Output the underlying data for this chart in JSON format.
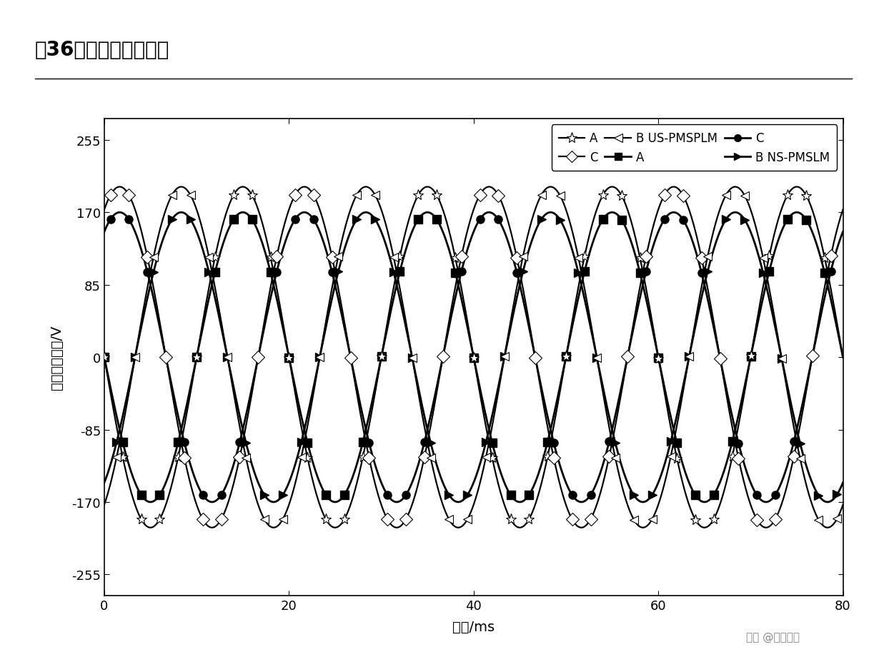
{
  "title": "图36：反电动势的波形",
  "xlabel": "时间/ms",
  "ylabel": "空载反电动势/V",
  "xlim": [
    0,
    80
  ],
  "ylim": [
    -280,
    280
  ],
  "xticks": [
    0,
    20,
    40,
    60,
    80
  ],
  "yticks": [
    -255,
    -170,
    -85,
    0,
    85,
    170,
    255
  ],
  "amp_us": 200,
  "amp_ns": 170,
  "freq_period": 20,
  "phi_A_us": 3.14159265,
  "phi_C_us": 1.04719755,
  "phi_B_us": 5.23598776,
  "phi_A_ns": 3.14159265,
  "phi_C_ns": 1.04719755,
  "phi_B_ns": 5.23598776,
  "watermark": "头条 @未来智库",
  "background_color": "#ffffff",
  "lw_us": 1.6,
  "lw_ns": 2.0,
  "ms_star": 11,
  "ms_diamond": 9,
  "ms_tri": 9,
  "ms_square": 8,
  "ms_circle": 8,
  "ms_tri_ns": 8,
  "n_markers": 10
}
